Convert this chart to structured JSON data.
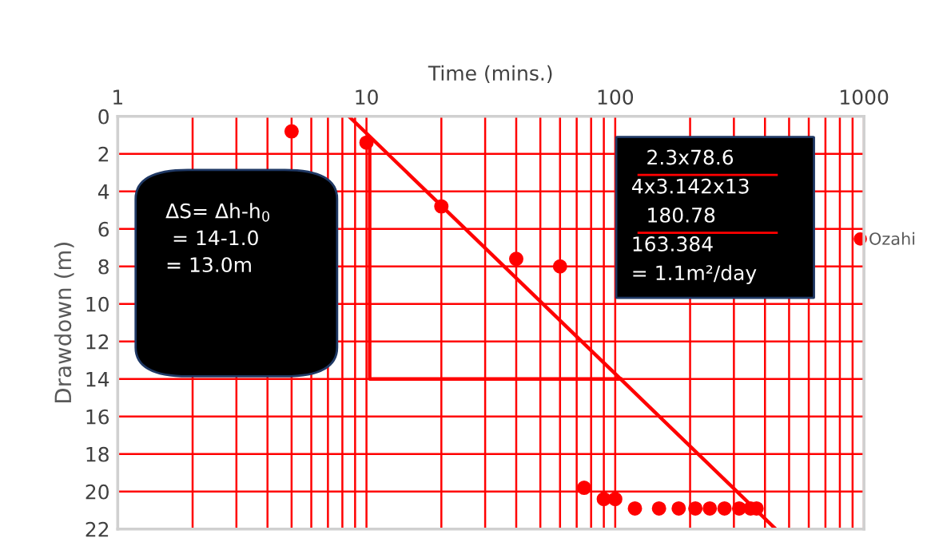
{
  "chart_data": {
    "type": "scatter",
    "xlabel": "Time (mins.)",
    "ylabel": "Drawdown (m)",
    "log": "x",
    "xlim": [
      1,
      1000
    ],
    "xticks": [
      1,
      10,
      100,
      1000
    ],
    "ylim": [
      22,
      0
    ],
    "yticks": [
      0,
      2,
      4,
      6,
      8,
      10,
      12,
      14,
      16,
      18,
      20,
      22
    ],
    "grid": true,
    "legend": "right",
    "marker": "circle",
    "series": [
      {
        "name": "Ozahi",
        "color": "#ff0000",
        "x": [
          5,
          10,
          20,
          40,
          60,
          75,
          90,
          100,
          120,
          150,
          180,
          210,
          240,
          275,
          315,
          350,
          370
        ],
        "values": [
          0.8,
          1.4,
          4.8,
          7.6,
          8.0,
          19.8,
          20.4,
          20.4,
          20.9,
          20.9,
          20.9,
          20.9,
          20.9,
          20.9,
          20.9,
          20.9,
          20.9
        ]
      },
      {
        "type": "line",
        "marker": "none",
        "color": "#ff0000",
        "x": [
          8.5,
          442
        ],
        "values": [
          0,
          22
        ]
      },
      {
        "type": "line",
        "marker": "none",
        "color": "#ff0000",
        "x": [
          10.3,
          10.3,
          105
        ],
        "values": [
          1.4,
          14,
          14
        ]
      }
    ],
    "annotations": [
      "ΔS= Δh-h$_{0}$\n = 14-1.0\n= 13.0m",
      "2.3x78.6\n4x3.142x13\n180.78\n163.384\n= 1.1m²/day"
    ]
  }
}
